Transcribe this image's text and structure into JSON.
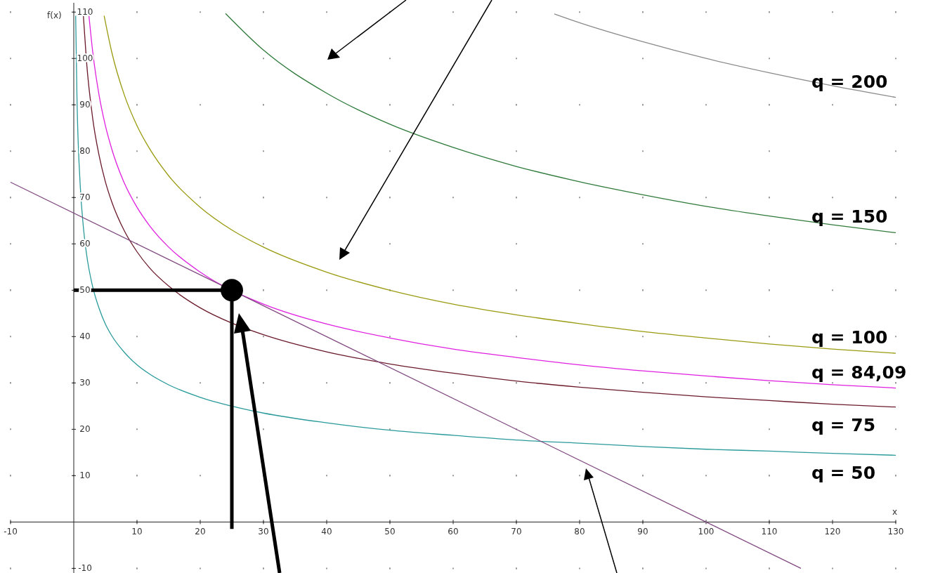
{
  "chart_data": {
    "type": "line",
    "xlabel": "x",
    "ylabel": "f(x)",
    "xlim": [
      -10,
      130
    ],
    "ylim": [
      -11,
      112
    ],
    "xticks": [
      -10,
      10,
      20,
      30,
      40,
      50,
      60,
      70,
      80,
      90,
      100,
      110,
      120,
      130
    ],
    "yticks": [
      -10,
      10,
      20,
      30,
      40,
      50,
      60,
      70,
      80,
      90,
      100,
      110
    ],
    "grid": true,
    "marker": "none",
    "line_style": "solid",
    "series": [
      {
        "name": "q = 200",
        "color": "#8a8a8a",
        "x": [
          76,
          80,
          90,
          100,
          110,
          120,
          130
        ],
        "values": [
          109.6,
          107.7,
          103.6,
          100.0,
          96.9,
          94.1,
          91.6
        ]
      },
      {
        "name": "q = 150",
        "color": "#2f7a3a",
        "x": [
          24,
          30,
          40,
          50,
          60,
          70,
          80,
          90,
          100,
          110,
          120,
          130
        ],
        "values": [
          109.7,
          101.8,
          92.5,
          85.8,
          80.8,
          76.7,
          73.4,
          70.6,
          68.1,
          66.0,
          64.1,
          62.4
        ]
      },
      {
        "name": "q = 100",
        "color": "#9a9a10",
        "x": [
          4.8,
          6,
          8,
          10,
          12,
          15,
          20,
          25,
          30,
          40,
          50,
          60,
          70,
          80,
          90,
          100,
          110,
          120,
          130
        ],
        "values": [
          109.2,
          101.4,
          92.1,
          85.5,
          80.5,
          74.7,
          67.9,
          63.0,
          59.3,
          53.9,
          50.0,
          47.0,
          44.7,
          42.8,
          41.1,
          39.7,
          38.4,
          37.3,
          36.4
        ]
      },
      {
        "name": "q = 84,09",
        "color": "#e020e0",
        "x": [
          2.4,
          3,
          4,
          5,
          6,
          8,
          10,
          12,
          15,
          20,
          25,
          30,
          40,
          50,
          60,
          70,
          80,
          90,
          100,
          110,
          120,
          130
        ],
        "values": [
          109.2,
          101.4,
          92.1,
          85.5,
          80.5,
          73.1,
          67.9,
          63.9,
          59.3,
          53.9,
          null,
          47.0,
          42.7,
          39.7,
          37.3,
          35.5,
          33.9,
          32.6,
          31.5,
          30.5,
          29.6,
          28.9
        ]
      },
      {
        "name": "q = 75",
        "color": "#6a1a2a",
        "x": [
          1.5,
          2,
          3,
          4,
          5,
          6,
          8,
          10,
          12,
          15,
          20,
          25,
          30,
          40,
          50,
          60,
          70,
          80,
          90,
          100,
          110,
          120,
          130
        ],
        "values": [
          109.6,
          99.6,
          87.0,
          79.1,
          73.4,
          69.1,
          62.8,
          58.3,
          54.8,
          50.9,
          46.2,
          42.9,
          40.4,
          36.7,
          34.1,
          32.1,
          30.4,
          29.1,
          28.0,
          27.0,
          26.2,
          25.4,
          24.8
        ]
      },
      {
        "name": "q = 50",
        "color": "#2a9a9a",
        "x": [
          0.3,
          0.5,
          1,
          1.5,
          2,
          3,
          4,
          5,
          6,
          8,
          10,
          12,
          15,
          20,
          25,
          30,
          40,
          50,
          60,
          70,
          80,
          90,
          100,
          110,
          120,
          130
        ],
        "values": [
          109.2,
          92.1,
          73.1,
          63.9,
          58.0,
          50.7,
          46.1,
          42.7,
          40.2,
          36.6,
          33.9,
          31.9,
          29.6,
          26.9,
          25.0,
          23.5,
          21.4,
          19.8,
          18.7,
          17.7,
          17.0,
          16.3,
          15.7,
          15.3,
          14.8,
          14.4
        ]
      },
      {
        "color": "#804a80",
        "x": [
          -10,
          115
        ],
        "values": [
          73.3,
          -10
        ]
      },
      {
        "color": "#000000",
        "x": [
          0,
          25,
          25
        ],
        "values": [
          50,
          50,
          -1.5
        ]
      },
      {
        "type": "scatter",
        "color": "#000000",
        "marker": "circle",
        "x": [
          25
        ],
        "values": [
          50
        ]
      }
    ]
  }
}
